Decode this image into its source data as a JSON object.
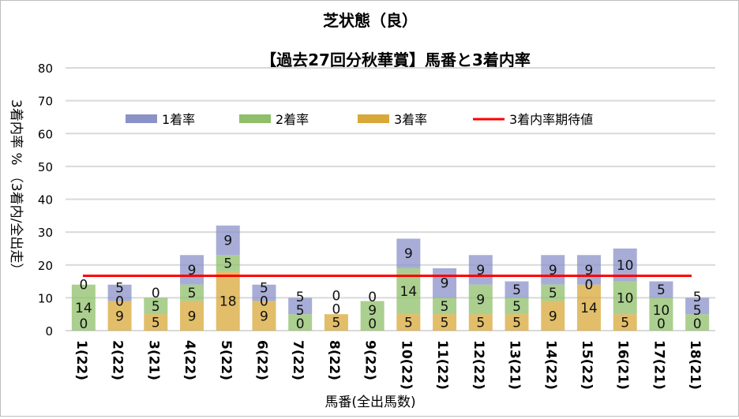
{
  "chart_data": {
    "type": "bar",
    "stacked": true,
    "title": "芝状態（良）",
    "subtitle": "【過去27回分秋華賞】馬番と3着内率",
    "xlabel": "馬番(全出馬数)",
    "ylabel": "3着内率 % （3着内/全出走）",
    "ylim": [
      0,
      80
    ],
    "yticks": [
      0,
      10,
      20,
      30,
      40,
      50,
      60,
      70,
      80
    ],
    "legend_position": "top",
    "categories": [
      "1(22)",
      "2(22)",
      "3(21)",
      "4(22)",
      "5(22)",
      "6(22)",
      "7(22)",
      "8(22)",
      "9(22)",
      "10(22)",
      "11(22)",
      "12(22)",
      "13(21)",
      "14(22)",
      "15(22)",
      "16(21)",
      "17(21)",
      "18(21)"
    ],
    "series": [
      {
        "name": "3着率",
        "color": "#d8a838",
        "values": [
          0,
          9,
          5,
          9,
          18,
          9,
          0,
          5,
          0,
          5,
          5,
          5,
          5,
          9,
          14,
          5,
          0,
          0
        ]
      },
      {
        "name": "2着率",
        "color": "#8fbf6a",
        "values": [
          14,
          0,
          5,
          5,
          5,
          0,
          5,
          0,
          9,
          14,
          5,
          9,
          5,
          5,
          0,
          10,
          10,
          5
        ]
      },
      {
        "name": "1着率",
        "color": "#8a92c8",
        "values": [
          0,
          5,
          0,
          9,
          9,
          5,
          5,
          0,
          0,
          9,
          9,
          9,
          5,
          9,
          9,
          10,
          5,
          5
        ]
      }
    ],
    "reference_line": {
      "name": "3着内率期待値",
      "color": "#ff0000",
      "value": 16.7
    }
  }
}
